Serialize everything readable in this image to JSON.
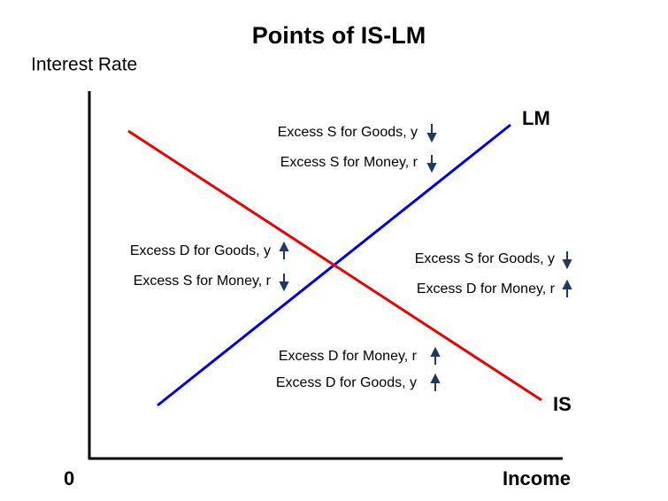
{
  "title": "Points of IS-LM",
  "y_axis_label": "Interest Rate",
  "x_axis_label": "Income",
  "origin_label": "0",
  "curves": [
    {
      "label": "LM"
    },
    {
      "label": "IS"
    }
  ],
  "regions": [
    {
      "lines": [
        "Excess S for Goods, y",
        "Excess S for Money, r"
      ]
    },
    {
      "lines": [
        "Excess D for Goods, y",
        "Excess S for Money, r"
      ]
    },
    {
      "lines": [
        "Excess S for Goods, y",
        "Excess D for Money, r"
      ]
    },
    {
      "lines": [
        "Excess D for Money, r",
        "Excess D for Goods, y"
      ]
    }
  ]
}
